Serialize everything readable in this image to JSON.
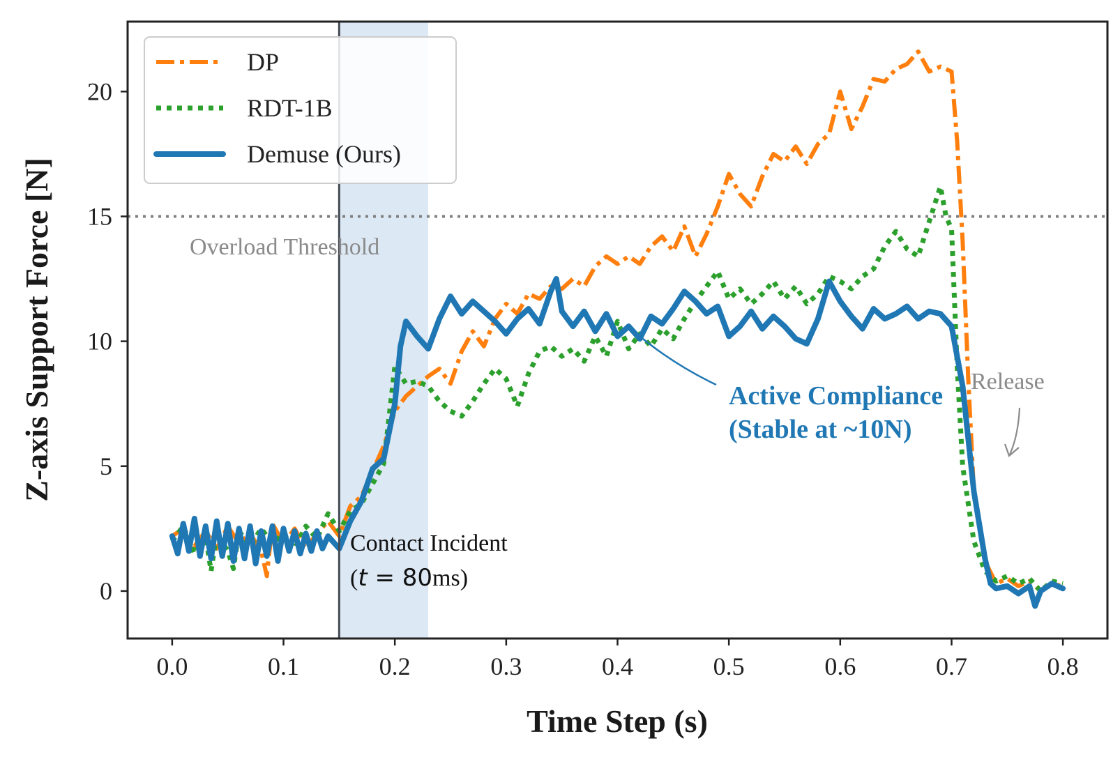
{
  "chart_data": {
    "type": "line",
    "xlabel": "Time Step (s)",
    "ylabel": "Z-axis Support Force [N]",
    "xlim": [
      -0.04,
      0.84
    ],
    "ylim": [
      -1.9,
      22.8
    ],
    "x_ticks": [
      "0.0",
      "0.1",
      "0.2",
      "0.3",
      "0.4",
      "0.5",
      "0.6",
      "0.7",
      "0.8"
    ],
    "y_ticks": [
      "0",
      "5",
      "10",
      "15",
      "20"
    ],
    "grid": false,
    "legend_position": "top-left",
    "series": [
      {
        "name": "DP",
        "color": "#ff7f0e",
        "style": "dash-dot",
        "points": [
          [
            0.0,
            2.2
          ],
          [
            0.01,
            2.5
          ],
          [
            0.02,
            1.8
          ],
          [
            0.03,
            2.4
          ],
          [
            0.04,
            1.7
          ],
          [
            0.05,
            2.6
          ],
          [
            0.06,
            1.9
          ],
          [
            0.07,
            2.3
          ],
          [
            0.08,
            1.6
          ],
          [
            0.085,
            0.6
          ],
          [
            0.09,
            2.7
          ],
          [
            0.1,
            1.9
          ],
          [
            0.11,
            2.5
          ],
          [
            0.12,
            1.7
          ],
          [
            0.13,
            2.3
          ],
          [
            0.14,
            2.8
          ],
          [
            0.15,
            2.2
          ],
          [
            0.16,
            3.4
          ],
          [
            0.17,
            3.8
          ],
          [
            0.18,
            4.8
          ],
          [
            0.19,
            5.8
          ],
          [
            0.2,
            7.2
          ],
          [
            0.21,
            7.8
          ],
          [
            0.22,
            8.2
          ],
          [
            0.23,
            8.6
          ],
          [
            0.24,
            8.9
          ],
          [
            0.25,
            8.3
          ],
          [
            0.26,
            9.6
          ],
          [
            0.27,
            10.4
          ],
          [
            0.28,
            9.8
          ],
          [
            0.29,
            10.9
          ],
          [
            0.3,
            11.5
          ],
          [
            0.31,
            11.1
          ],
          [
            0.32,
            11.9
          ],
          [
            0.33,
            11.7
          ],
          [
            0.34,
            12.2
          ],
          [
            0.35,
            12.1
          ],
          [
            0.36,
            12.5
          ],
          [
            0.37,
            12.2
          ],
          [
            0.38,
            13.0
          ],
          [
            0.39,
            13.4
          ],
          [
            0.4,
            13.1
          ],
          [
            0.41,
            13.4
          ],
          [
            0.42,
            13.1
          ],
          [
            0.43,
            13.8
          ],
          [
            0.44,
            14.2
          ],
          [
            0.45,
            13.6
          ],
          [
            0.46,
            14.6
          ],
          [
            0.47,
            13.4
          ],
          [
            0.48,
            14.3
          ],
          [
            0.49,
            15.4
          ],
          [
            0.5,
            16.7
          ],
          [
            0.51,
            15.9
          ],
          [
            0.52,
            15.4
          ],
          [
            0.53,
            16.6
          ],
          [
            0.54,
            17.5
          ],
          [
            0.55,
            17.2
          ],
          [
            0.56,
            17.8
          ],
          [
            0.57,
            17.1
          ],
          [
            0.58,
            17.9
          ],
          [
            0.59,
            18.3
          ],
          [
            0.6,
            20.0
          ],
          [
            0.61,
            18.5
          ],
          [
            0.62,
            19.4
          ],
          [
            0.63,
            20.5
          ],
          [
            0.64,
            20.4
          ],
          [
            0.65,
            20.9
          ],
          [
            0.66,
            21.1
          ],
          [
            0.67,
            21.6
          ],
          [
            0.68,
            20.8
          ],
          [
            0.69,
            21.0
          ],
          [
            0.7,
            20.8
          ],
          [
            0.705,
            18.0
          ],
          [
            0.71,
            14.0
          ],
          [
            0.715,
            8.5
          ],
          [
            0.72,
            4.0
          ],
          [
            0.73,
            1.2
          ],
          [
            0.74,
            0.3
          ],
          [
            0.75,
            0.5
          ],
          [
            0.76,
            0.2
          ],
          [
            0.77,
            0.4
          ],
          [
            0.78,
            0.0
          ],
          [
            0.79,
            0.3
          ],
          [
            0.8,
            0.2
          ]
        ]
      },
      {
        "name": "RDT-1B",
        "color": "#2ca02c",
        "style": "dotted",
        "points": [
          [
            0.0,
            2.0
          ],
          [
            0.01,
            2.6
          ],
          [
            0.02,
            1.5
          ],
          [
            0.03,
            2.2
          ],
          [
            0.035,
            0.8
          ],
          [
            0.04,
            2.3
          ],
          [
            0.05,
            1.6
          ],
          [
            0.055,
            0.9
          ],
          [
            0.06,
            2.4
          ],
          [
            0.07,
            1.8
          ],
          [
            0.08,
            2.5
          ],
          [
            0.09,
            1.9
          ],
          [
            0.1,
            2.3
          ],
          [
            0.11,
            1.7
          ],
          [
            0.12,
            2.6
          ],
          [
            0.13,
            2.1
          ],
          [
            0.14,
            3.1
          ],
          [
            0.15,
            2.4
          ],
          [
            0.16,
            3.2
          ],
          [
            0.17,
            3.5
          ],
          [
            0.18,
            4.3
          ],
          [
            0.19,
            5.1
          ],
          [
            0.2,
            9.0
          ],
          [
            0.21,
            8.3
          ],
          [
            0.22,
            8.4
          ],
          [
            0.23,
            8.2
          ],
          [
            0.24,
            7.6
          ],
          [
            0.25,
            7.2
          ],
          [
            0.26,
            7.0
          ],
          [
            0.27,
            7.6
          ],
          [
            0.28,
            8.3
          ],
          [
            0.29,
            8.9
          ],
          [
            0.3,
            8.5
          ],
          [
            0.31,
            7.4
          ],
          [
            0.32,
            8.7
          ],
          [
            0.33,
            9.6
          ],
          [
            0.34,
            9.8
          ],
          [
            0.35,
            9.4
          ],
          [
            0.36,
            9.7
          ],
          [
            0.37,
            9.2
          ],
          [
            0.38,
            10.2
          ],
          [
            0.39,
            9.4
          ],
          [
            0.4,
            10.8
          ],
          [
            0.41,
            9.7
          ],
          [
            0.42,
            10.3
          ],
          [
            0.43,
            9.8
          ],
          [
            0.44,
            10.5
          ],
          [
            0.45,
            10.1
          ],
          [
            0.46,
            10.9
          ],
          [
            0.47,
            11.6
          ],
          [
            0.48,
            12.2
          ],
          [
            0.49,
            12.8
          ],
          [
            0.5,
            11.7
          ],
          [
            0.51,
            12.1
          ],
          [
            0.52,
            11.5
          ],
          [
            0.53,
            11.9
          ],
          [
            0.54,
            12.4
          ],
          [
            0.55,
            11.7
          ],
          [
            0.56,
            12.2
          ],
          [
            0.57,
            11.5
          ],
          [
            0.58,
            11.9
          ],
          [
            0.59,
            12.6
          ],
          [
            0.6,
            12.4
          ],
          [
            0.61,
            12.1
          ],
          [
            0.62,
            12.6
          ],
          [
            0.63,
            12.9
          ],
          [
            0.64,
            13.8
          ],
          [
            0.65,
            14.4
          ],
          [
            0.66,
            13.7
          ],
          [
            0.67,
            13.4
          ],
          [
            0.68,
            14.8
          ],
          [
            0.69,
            16.2
          ],
          [
            0.695,
            15.0
          ],
          [
            0.7,
            14.5
          ],
          [
            0.705,
            9.0
          ],
          [
            0.71,
            5.0
          ],
          [
            0.72,
            2.0
          ],
          [
            0.73,
            0.8
          ],
          [
            0.74,
            0.4
          ],
          [
            0.75,
            0.6
          ],
          [
            0.76,
            0.3
          ],
          [
            0.77,
            0.5
          ],
          [
            0.78,
            0.0
          ],
          [
            0.79,
            0.4
          ],
          [
            0.8,
            0.3
          ]
        ]
      },
      {
        "name": "Demuse (Ours)",
        "color": "#1f77b4",
        "style": "solid",
        "points": [
          [
            0.0,
            2.2
          ],
          [
            0.005,
            1.5
          ],
          [
            0.01,
            2.7
          ],
          [
            0.015,
            1.6
          ],
          [
            0.02,
            2.9
          ],
          [
            0.025,
            1.4
          ],
          [
            0.03,
            2.6
          ],
          [
            0.035,
            1.3
          ],
          [
            0.04,
            2.8
          ],
          [
            0.045,
            1.4
          ],
          [
            0.05,
            2.7
          ],
          [
            0.055,
            1.2
          ],
          [
            0.06,
            2.5
          ],
          [
            0.065,
            1.3
          ],
          [
            0.07,
            2.6
          ],
          [
            0.075,
            1.1
          ],
          [
            0.08,
            2.4
          ],
          [
            0.085,
            1.4
          ],
          [
            0.09,
            2.6
          ],
          [
            0.095,
            1.2
          ],
          [
            0.1,
            2.5
          ],
          [
            0.105,
            1.6
          ],
          [
            0.11,
            2.4
          ],
          [
            0.115,
            1.5
          ],
          [
            0.12,
            2.3
          ],
          [
            0.125,
            1.6
          ],
          [
            0.13,
            2.4
          ],
          [
            0.135,
            1.7
          ],
          [
            0.14,
            2.2
          ],
          [
            0.15,
            1.7
          ],
          [
            0.16,
            2.8
          ],
          [
            0.17,
            3.6
          ],
          [
            0.18,
            4.9
          ],
          [
            0.19,
            5.3
          ],
          [
            0.2,
            7.5
          ],
          [
            0.205,
            9.8
          ],
          [
            0.21,
            10.8
          ],
          [
            0.22,
            10.2
          ],
          [
            0.23,
            9.7
          ],
          [
            0.24,
            10.9
          ],
          [
            0.25,
            11.8
          ],
          [
            0.26,
            11.1
          ],
          [
            0.27,
            11.6
          ],
          [
            0.28,
            11.2
          ],
          [
            0.29,
            10.8
          ],
          [
            0.3,
            10.3
          ],
          [
            0.31,
            10.9
          ],
          [
            0.32,
            11.3
          ],
          [
            0.33,
            10.7
          ],
          [
            0.34,
            12.0
          ],
          [
            0.345,
            12.5
          ],
          [
            0.35,
            11.2
          ],
          [
            0.36,
            10.6
          ],
          [
            0.37,
            11.2
          ],
          [
            0.38,
            10.4
          ],
          [
            0.39,
            11.1
          ],
          [
            0.4,
            10.2
          ],
          [
            0.41,
            10.6
          ],
          [
            0.42,
            10.1
          ],
          [
            0.43,
            11.0
          ],
          [
            0.44,
            10.7
          ],
          [
            0.45,
            11.3
          ],
          [
            0.46,
            12.0
          ],
          [
            0.47,
            11.6
          ],
          [
            0.48,
            11.1
          ],
          [
            0.49,
            11.4
          ],
          [
            0.5,
            10.2
          ],
          [
            0.51,
            10.6
          ],
          [
            0.52,
            11.2
          ],
          [
            0.53,
            10.5
          ],
          [
            0.54,
            11.0
          ],
          [
            0.55,
            10.6
          ],
          [
            0.56,
            10.1
          ],
          [
            0.57,
            9.9
          ],
          [
            0.58,
            10.9
          ],
          [
            0.59,
            12.4
          ],
          [
            0.6,
            11.6
          ],
          [
            0.61,
            11.0
          ],
          [
            0.62,
            10.5
          ],
          [
            0.63,
            11.3
          ],
          [
            0.64,
            10.9
          ],
          [
            0.65,
            11.1
          ],
          [
            0.66,
            11.4
          ],
          [
            0.67,
            10.9
          ],
          [
            0.68,
            11.2
          ],
          [
            0.69,
            11.1
          ],
          [
            0.7,
            10.6
          ],
          [
            0.71,
            8.2
          ],
          [
            0.72,
            4.0
          ],
          [
            0.73,
            1.3
          ],
          [
            0.735,
            0.3
          ],
          [
            0.74,
            0.1
          ],
          [
            0.75,
            0.2
          ],
          [
            0.76,
            -0.1
          ],
          [
            0.77,
            0.2
          ],
          [
            0.775,
            -0.6
          ],
          [
            0.78,
            0.0
          ],
          [
            0.79,
            0.3
          ],
          [
            0.8,
            0.1
          ]
        ]
      }
    ],
    "threshold": {
      "value": 15,
      "label": "Overload Threshold",
      "color": "#808080"
    },
    "contact_line": {
      "x": 0.15,
      "color": "#444b55"
    },
    "contact_band": {
      "x0": 0.15,
      "x1": 0.23,
      "color": "#c9dcee"
    },
    "annotations": {
      "contact_line1": "Contact Incident",
      "contact_open": "(",
      "contact_t": "t",
      "contact_eq": " = 80",
      "contact_ms": "ms)",
      "compliance_line1": "Active Compliance",
      "compliance_line2": "(Stable at ~10N)",
      "compliance_color": "#1f77b4",
      "release_label": "Release"
    }
  }
}
